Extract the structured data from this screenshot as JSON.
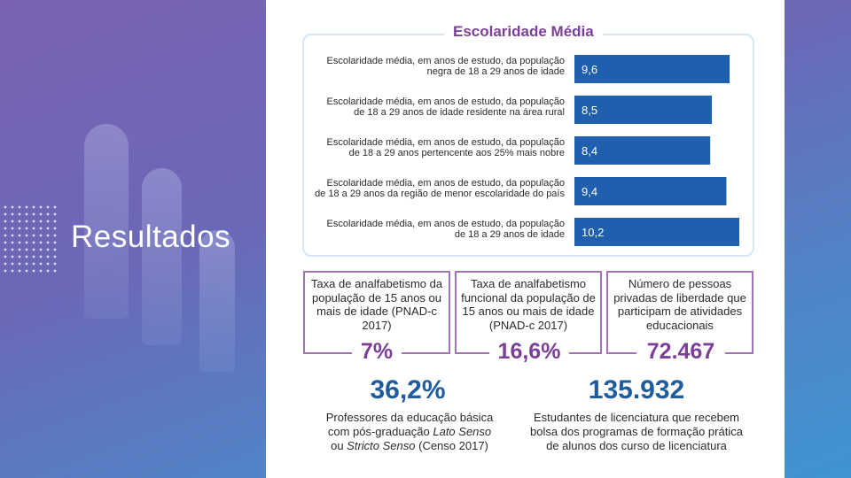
{
  "section": {
    "title": "Resultados"
  },
  "chart_data": {
    "type": "bar",
    "orientation": "horizontal",
    "title": "Escolaridade Média",
    "categories": [
      [
        "Escolaridade média, em anos de estudo, da população",
        "negra de 18 a 29 anos de idade"
      ],
      [
        "Escolaridade média, em anos de estudo, da população",
        "de 18 a 29 anos de idade residente na área rural"
      ],
      [
        "Escolaridade média, em anos de estudo, da população",
        "de 18 a 29 anos pertencente aos 25% mais nobre"
      ],
      [
        "Escolaridade média, em anos de estudo, da população",
        "de 18 a 29 anos da região de menor escolaridade do país"
      ],
      [
        "Escolaridade média, em anos de estudo, da população",
        "de 18 a 29 anos de idade"
      ]
    ],
    "values": [
      9.6,
      8.5,
      8.4,
      9.4,
      10.2
    ],
    "value_labels": [
      "9,6",
      "8,5",
      "8,4",
      "9,4",
      "10,2"
    ],
    "xlim": [
      0,
      10.2
    ],
    "bar_color": "#1f5fae",
    "xlabel": "",
    "ylabel": ""
  },
  "stats": [
    {
      "label": "Taxa de analfabetismo da população de 15 anos ou mais de idade (PNAD-c 2017)",
      "value": "7%"
    },
    {
      "label": "Taxa de analfabetismo funcional da população de 15 anos ou mais de idade (PNAD-c 2017)",
      "value": "16,6%"
    },
    {
      "label": "Número de pessoas privadas de liberdade que participam de atividades educacionais",
      "value": "72.467"
    }
  ],
  "highlights": [
    {
      "value": "36,2%",
      "caption_lines": [
        "Professores da educação básica",
        "com pós-graduação ",
        "Lato Senso",
        "ou ",
        "Stricto Senso",
        " (Censo 2017)"
      ]
    },
    {
      "value": "135.932",
      "caption_lines": [
        "Estudantes de licenciatura que recebem",
        "bolsa dos programas de formação prática",
        "de alunos dos curso de licenciatura"
      ]
    }
  ],
  "colors": {
    "purple": "#7b3f98",
    "blue": "#1f5fae",
    "dark_blue": "#1f5c9e"
  }
}
